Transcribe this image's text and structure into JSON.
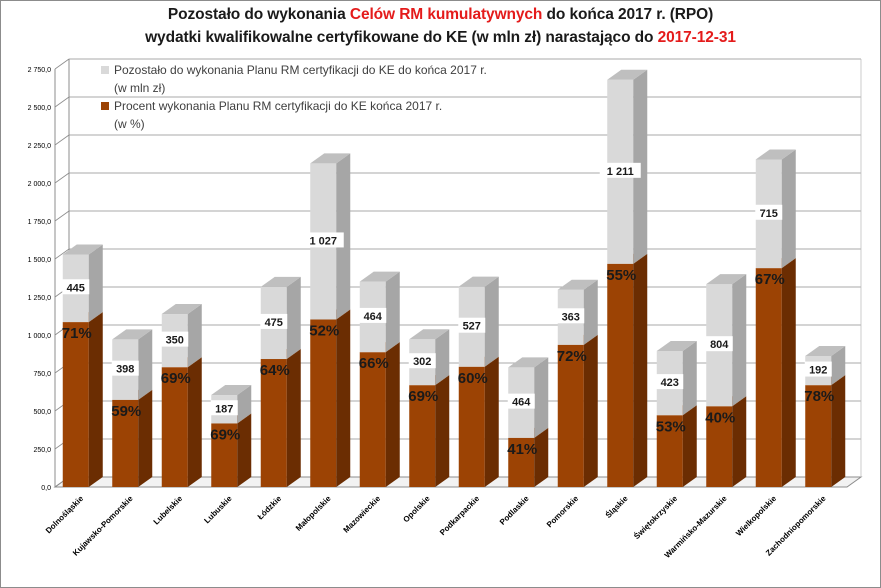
{
  "title": {
    "line1_a": "Pozostało do wykonania ",
    "line1_b": "Celów RM kumulatywnych",
    "line1_c": " do końca 2017 r. (RPO)",
    "line2_a": "wydatki kwalifikowalne certyfikowane do KE (w mln zł) narastająco do ",
    "line2_b": "2017-12-31"
  },
  "colors": {
    "remaining": "#d9d9d9",
    "percent": "#9c4304",
    "title_highlight": "#e41b1b"
  },
  "chart_data": {
    "type": "bar",
    "stacked": true,
    "three_d": true,
    "categories": [
      "Dolnośląskie",
      "Kujawsko-Pomorskie",
      "Lubelskie",
      "Lubuskie",
      "Łódzkie",
      "Małopolskie",
      "Mazowieckie",
      "Opolskie",
      "Podkarpackie",
      "Podlaskie",
      "Pomorskie",
      "Śląskie",
      "Świętokrzyskie",
      "Warmińsko-Mazurskie",
      "Wielkopolskie",
      "Zachodniopomorskie"
    ],
    "percent_labels": [
      "71%",
      "59%",
      "69%",
      "69%",
      "64%",
      "52%",
      "66%",
      "69%",
      "60%",
      "41%",
      "72%",
      "55%",
      "53%",
      "40%",
      "67%",
      "78%"
    ],
    "remaining_labels": [
      "445",
      "398",
      "350",
      "187",
      "475",
      "1 027",
      "464",
      "302",
      "527",
      "464",
      "363",
      "1 211",
      "423",
      "804",
      "715",
      "192"
    ],
    "series": [
      {
        "name": "Procent wykonania Planu RM certyfikacji do KE końca 2017 r.\n(w %)",
        "values": [
          1085,
          573,
          788,
          418,
          842,
          1102,
          887,
          670,
          791,
          323,
          935,
          1468,
          472,
          531,
          1440,
          670
        ]
      },
      {
        "name": "Pozostało do wykonania Planu RM certyfikacji do KE do końca 2017 r.\n(w mln zł)",
        "values": [
          445,
          398,
          350,
          187,
          475,
          1027,
          464,
          302,
          527,
          464,
          363,
          1211,
          423,
          804,
          715,
          192
        ]
      }
    ],
    "y_ticks": [
      "0,0",
      "250,0",
      "500,0",
      "750,0",
      "1 000,0",
      "1 250,0",
      "1 500,0",
      "1 750,0",
      "2 000,0",
      "2 250,0",
      "2 500,0",
      "2 750,0"
    ],
    "ylim": [
      0,
      2750
    ],
    "legend_position": "top-left",
    "grid": true
  }
}
